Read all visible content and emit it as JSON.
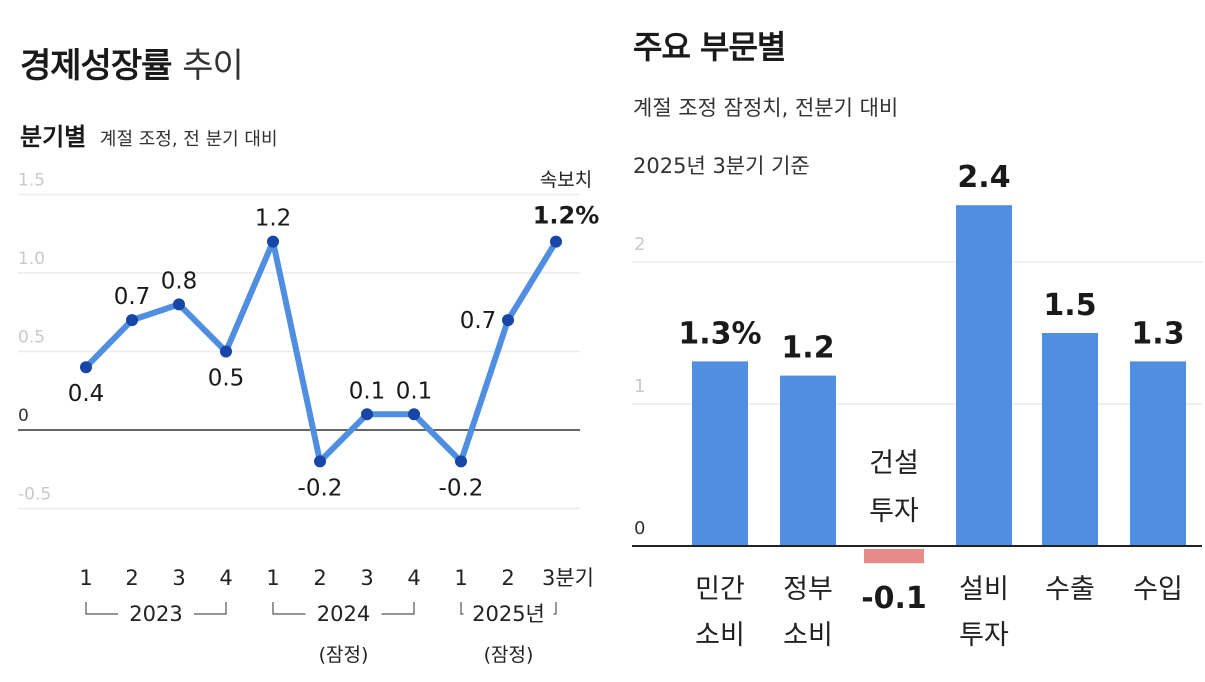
{
  "left_panel": {
    "title_bold": "경제성장률",
    "title_light": "추이",
    "subtitle_bold": "분기별",
    "subtitle_note": "계절 조정, 전 분기 대비"
  },
  "right_panel": {
    "title": "주요 부문별",
    "subtitle_line1": "계절 조정 잠정치, 전분기 대비",
    "subtitle_line2": "2025년 3분기 기준"
  },
  "chart_data": [
    {
      "type": "line",
      "title": "경제성장률 추이",
      "subtitle": "분기별 계절 조정, 전 분기 대비",
      "unit": "%",
      "ylim": [
        -0.5,
        1.5
      ],
      "yticks": [
        "1.5",
        "1.0",
        "0.5",
        "0",
        "-0.5"
      ],
      "x": [
        "1",
        "2",
        "3",
        "4",
        "1",
        "2",
        "3",
        "4",
        "1",
        "2",
        "3분기"
      ],
      "values": [
        0.4,
        0.7,
        0.8,
        0.5,
        1.2,
        -0.2,
        0.1,
        0.1,
        -0.2,
        0.7,
        1.2
      ],
      "value_labels": [
        "0.4",
        "0.7",
        "0.8",
        "0.5",
        "1.2",
        "-0.2",
        "0.1",
        "0.1",
        "-0.2",
        "0.7",
        "1.2%"
      ],
      "year_groups": [
        {
          "label": "2023",
          "note": ""
        },
        {
          "label": "2024",
          "note": "(잠정)"
        },
        {
          "label": "2025년",
          "note": "(잠정)"
        }
      ],
      "annotation": "속보치",
      "series_color": "#4f8ee0",
      "marker_color": "#1746a8"
    },
    {
      "type": "bar",
      "title": "주요 부문별",
      "subtitle": "계절 조정 잠정치, 전분기 대비 · 2025년 3분기 기준",
      "unit": "%",
      "ylim": [
        0,
        2.4
      ],
      "yticks": [
        "2",
        "1",
        "0"
      ],
      "categories": [
        [
          "민간",
          "소비"
        ],
        [
          "정부",
          "소비"
        ],
        [
          "건설",
          "투자"
        ],
        [
          "설비",
          "투자"
        ],
        [
          "수출"
        ],
        [
          "수입"
        ]
      ],
      "values": [
        1.3,
        1.2,
        -0.1,
        2.4,
        1.5,
        1.3
      ],
      "value_labels": [
        "1.3%",
        "1.2",
        "-0.1",
        "2.4",
        "1.5",
        "1.3"
      ],
      "positive_color": "#4f8ee0",
      "negative_color": "#e78a8a"
    }
  ]
}
